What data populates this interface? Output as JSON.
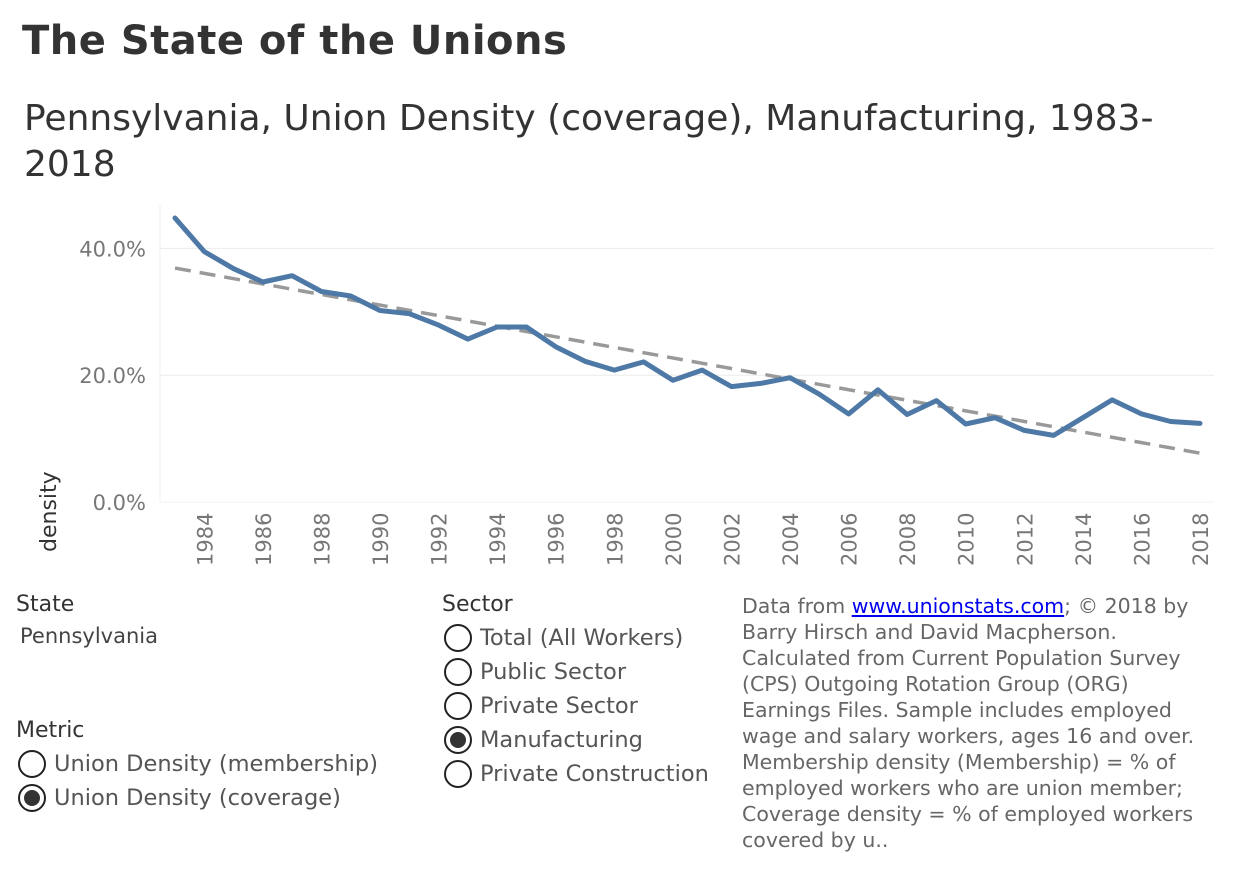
{
  "header": {
    "title": "The State of the Unions",
    "subtitle": "Pennsylvania, Union Density (coverage), Manufacturing, 1983-2018"
  },
  "chart_data": {
    "type": "line",
    "title": "Pennsylvania, Union Density (coverage), Manufacturing, 1983-2018",
    "xlabel": "",
    "ylabel": "density",
    "ylim": [
      0,
      47
    ],
    "y_ticks": [
      "40.0%",
      "20.0%",
      "0.0%"
    ],
    "x_tick_labels": [
      "1984",
      "1986",
      "1988",
      "1990",
      "1992",
      "1994",
      "1996",
      "1998",
      "2000",
      "2002",
      "2004",
      "2006",
      "2008",
      "2010",
      "2012",
      "2014",
      "2016",
      "2018"
    ],
    "x": [
      1983,
      1984,
      1985,
      1986,
      1987,
      1988,
      1989,
      1990,
      1991,
      1992,
      1993,
      1994,
      1995,
      1996,
      1997,
      1998,
      1999,
      2000,
      2001,
      2002,
      2003,
      2004,
      2005,
      2006,
      2007,
      2008,
      2009,
      2010,
      2011,
      2012,
      2013,
      2014,
      2015,
      2016,
      2017,
      2018
    ],
    "series": [
      {
        "name": "Union Density (coverage)",
        "color": "#4e79a7",
        "values": [
          44.8,
          39.5,
          36.8,
          34.7,
          35.7,
          33.2,
          32.5,
          30.2,
          29.7,
          27.9,
          25.7,
          27.6,
          27.6,
          24.5,
          22.2,
          20.8,
          22.1,
          19.2,
          20.8,
          18.2,
          18.7,
          19.6,
          17.0,
          13.9,
          17.7,
          13.8,
          16.0,
          12.3,
          13.3,
          11.3,
          10.5,
          13.3,
          16.1,
          13.9,
          12.7,
          12.4
        ]
      }
    ],
    "trend_line": {
      "name": "trend",
      "color": "#999999",
      "start": {
        "x": 1983,
        "y": 36.9
      },
      "end": {
        "x": 2018,
        "y": 7.7
      }
    },
    "grid": true
  },
  "filters": {
    "state": {
      "label": "State",
      "value": "Pennsylvania"
    },
    "metric": {
      "label": "Metric",
      "options": [
        "Union Density (membership)",
        "Union Density (coverage)"
      ],
      "selected": 1
    },
    "sector": {
      "label": "Sector",
      "options": [
        "Total (All Workers)",
        "Public Sector",
        "Private Sector",
        "Manufacturing",
        "Private Construction"
      ],
      "selected": 3
    }
  },
  "note": {
    "prefix": "Data from ",
    "link_text": "www.unionstats.com",
    "body": "; © 2018 by Barry Hirsch and David Macpherson. Calculated from Current Population Survey (CPS) Outgoing Rotation Group (ORG) Earnings Files. Sample includes employed wage and salary workers, ages 16 and over. Membership density (Membership) = % of employed workers who are union member; Coverage density = % of employed workers covered by u.."
  }
}
